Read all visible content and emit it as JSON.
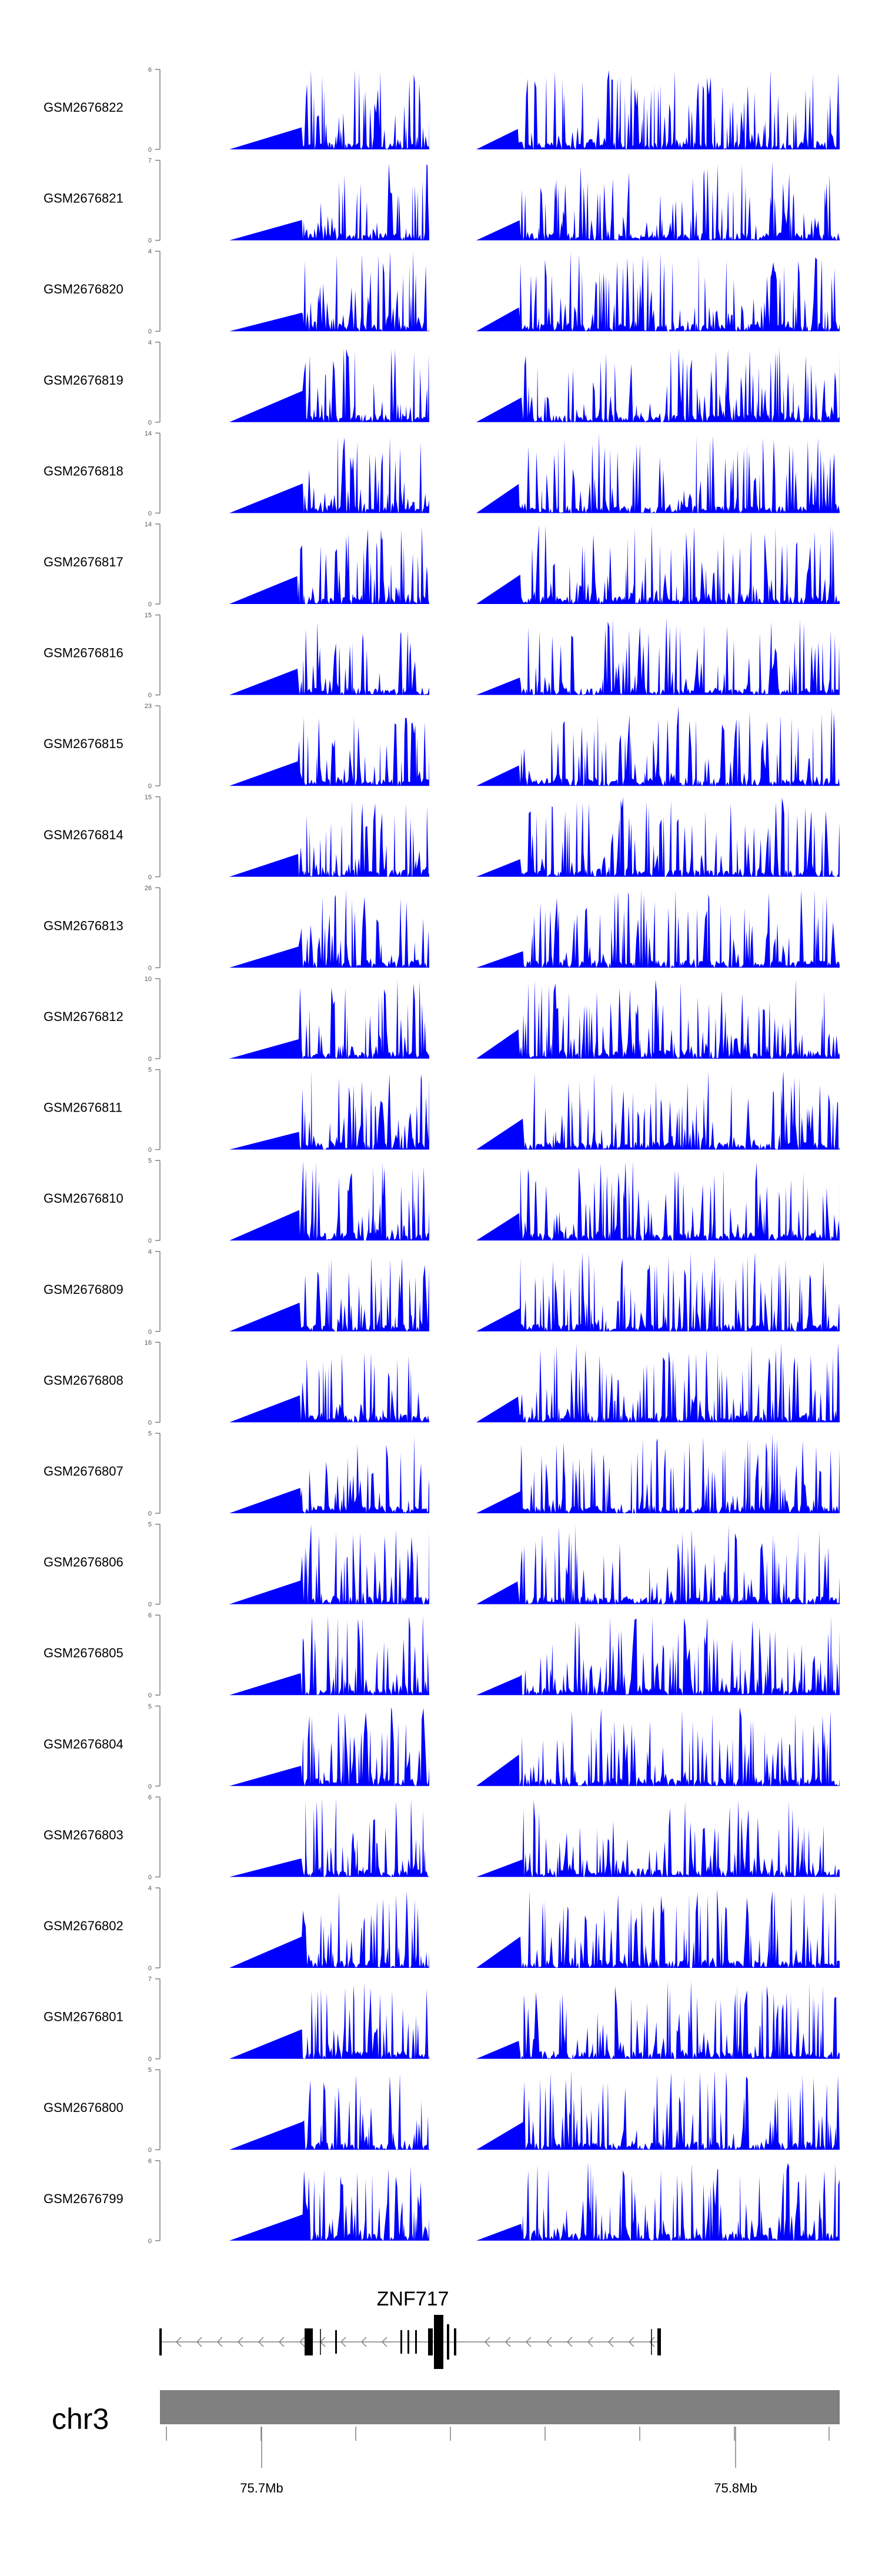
{
  "colors": {
    "track_fill": "#0000ff",
    "axis": "#808080",
    "ideogram": "#808080",
    "gene": "#000000",
    "text": "#000000"
  },
  "chart_data": {
    "type": "area",
    "chromosome": "chr3",
    "x_ticks": [
      "75.7Mb",
      "75.8Mb"
    ],
    "gene": {
      "name": "ZNF717"
    },
    "tracks": [
      {
        "name": "GSM2676822",
        "ymax": 6,
        "ymin": 0
      },
      {
        "name": "GSM2676821",
        "ymax": 7,
        "ymin": 0
      },
      {
        "name": "GSM2676820",
        "ymax": 4,
        "ymin": 0
      },
      {
        "name": "GSM2676819",
        "ymax": 4,
        "ymin": 0
      },
      {
        "name": "GSM2676818",
        "ymax": 14,
        "ymin": 0
      },
      {
        "name": "GSM2676817",
        "ymax": 14,
        "ymin": 0
      },
      {
        "name": "GSM2676816",
        "ymax": 15,
        "ymin": 0
      },
      {
        "name": "GSM2676815",
        "ymax": 23,
        "ymin": 0
      },
      {
        "name": "GSM2676814",
        "ymax": 15,
        "ymin": 0
      },
      {
        "name": "GSM2676813",
        "ymax": 26,
        "ymin": 0
      },
      {
        "name": "GSM2676812",
        "ymax": 10,
        "ymin": 0
      },
      {
        "name": "GSM2676811",
        "ymax": 5,
        "ymin": 0
      },
      {
        "name": "GSM2676810",
        "ymax": 5,
        "ymin": 0
      },
      {
        "name": "GSM2676809",
        "ymax": 4,
        "ymin": 0
      },
      {
        "name": "GSM2676808",
        "ymax": 16,
        "ymin": 0
      },
      {
        "name": "GSM2676807",
        "ymax": 5,
        "ymin": 0
      },
      {
        "name": "GSM2676806",
        "ymax": 5,
        "ymin": 0
      },
      {
        "name": "GSM2676805",
        "ymax": 6,
        "ymin": 0
      },
      {
        "name": "GSM2676804",
        "ymax": 5,
        "ymin": 0
      },
      {
        "name": "GSM2676803",
        "ymax": 6,
        "ymin": 0
      },
      {
        "name": "GSM2676802",
        "ymax": 4,
        "ymin": 0
      },
      {
        "name": "GSM2676801",
        "ymax": 7,
        "ymin": 0
      },
      {
        "name": "GSM2676800",
        "ymax": 5,
        "ymin": 0
      },
      {
        "name": "GSM2676799",
        "ymax": 6,
        "ymin": 0
      }
    ]
  }
}
